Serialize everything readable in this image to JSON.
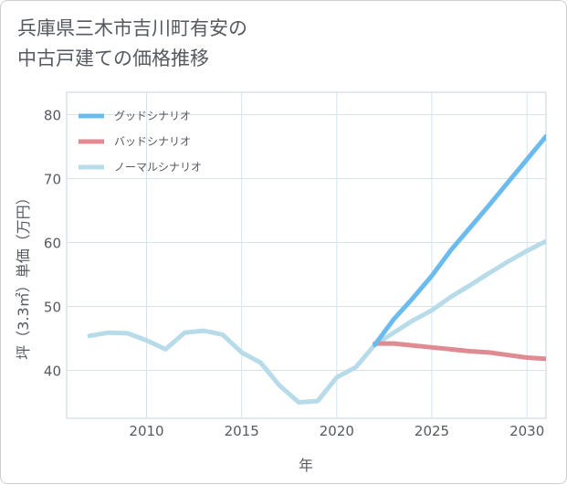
{
  "chart_data": {
    "type": "line",
    "title": [
      "兵庫県三木市吉川町有安の",
      "中古戸建ての価格推移"
    ],
    "xlabel": "年",
    "ylabel": "坪（3.3㎡）単価（万円）",
    "xlim": [
      2005.8,
      2031
    ],
    "ylim": [
      32.5,
      83.5
    ],
    "xticks": [
      2010,
      2015,
      2020,
      2025,
      2030
    ],
    "yticks": [
      40,
      50,
      60,
      70,
      80
    ],
    "grid": true,
    "legend_position": "top-left",
    "series": [
      {
        "name": "グッドシナリオ",
        "color": "#6cbbee",
        "x": [
          2022,
          2023,
          2024,
          2025,
          2026,
          2027,
          2028,
          2029,
          2030,
          2031
        ],
        "y": [
          44.0,
          48.0,
          51.3,
          54.8,
          58.8,
          62.3,
          65.8,
          69.4,
          73.0,
          76.6
        ]
      },
      {
        "name": "バッドシナリオ",
        "color": "#e08a92",
        "x": [
          2022,
          2023,
          2024,
          2025,
          2026,
          2027,
          2028,
          2029,
          2030,
          2031
        ],
        "y": [
          44.2,
          44.2,
          43.9,
          43.6,
          43.3,
          43.0,
          42.8,
          42.4,
          42.0,
          41.8
        ]
      },
      {
        "name": "ノーマルシナリオ",
        "color": "#b7dbe9",
        "x": [
          2007,
          2008,
          2009,
          2010,
          2011,
          2012,
          2013,
          2014,
          2015,
          2016,
          2017,
          2018,
          2019,
          2020,
          2021,
          2022,
          2023,
          2024,
          2025,
          2026,
          2027,
          2028,
          2029,
          2030,
          2031
        ],
        "y": [
          45.4,
          45.9,
          45.8,
          44.7,
          43.3,
          45.9,
          46.2,
          45.6,
          42.8,
          41.2,
          37.6,
          35.0,
          35.2,
          38.9,
          40.5,
          44.0,
          45.9,
          47.8,
          49.4,
          51.5,
          53.3,
          55.2,
          57.0,
          58.7,
          60.2
        ]
      }
    ]
  }
}
